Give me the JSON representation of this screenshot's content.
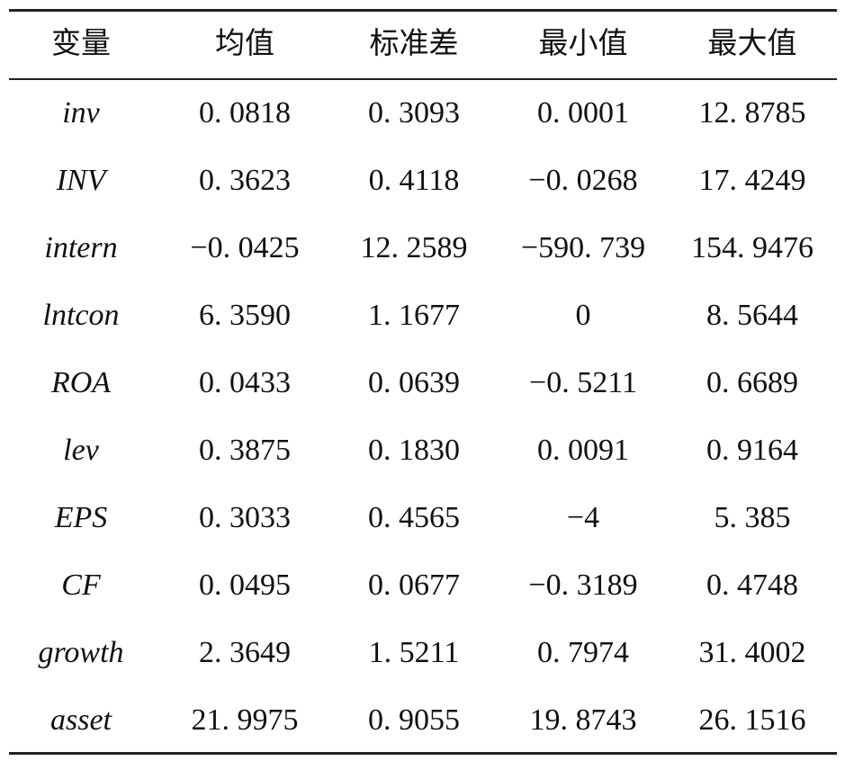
{
  "table": {
    "header": [
      "变量",
      "均值",
      "标准差",
      "最小值",
      "最大值"
    ],
    "rows": [
      [
        "inv",
        "0. 0818",
        "0. 3093",
        "0. 0001",
        "12. 8785"
      ],
      [
        "INV",
        "0. 3623",
        "0. 4118",
        "−0. 0268",
        "17. 4249"
      ],
      [
        "intern",
        "−0. 0425",
        "12. 2589",
        "−590. 739",
        "154. 9476"
      ],
      [
        "lntcon",
        "6. 3590",
        "1. 1677",
        "0",
        "8. 5644"
      ],
      [
        "ROA",
        "0. 0433",
        "0. 0639",
        "−0. 5211",
        "0. 6689"
      ],
      [
        "lev",
        "0. 3875",
        "0. 1830",
        "0. 0091",
        "0. 9164"
      ],
      [
        "EPS",
        "0. 3033",
        "0. 4565",
        "−4",
        "5. 385"
      ],
      [
        "CF",
        "0. 0495",
        "0. 0677",
        "−0. 3189",
        "0. 4748"
      ],
      [
        "growth",
        "2. 3649",
        "1. 5211",
        "0. 7974",
        "31. 4002"
      ],
      [
        "asset",
        "21. 9975",
        "0. 9055",
        "19. 8743",
        "26. 1516"
      ]
    ]
  }
}
